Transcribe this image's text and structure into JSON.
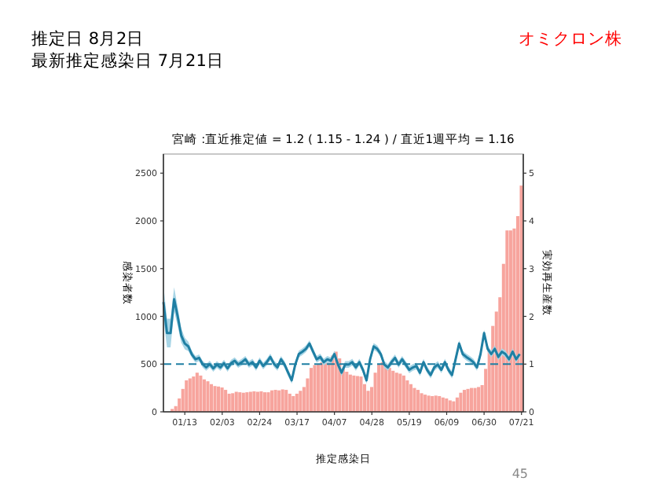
{
  "chart_data": {
    "type": "bar",
    "title": "宮崎 :直近推定値 = 1.2 ( 1.15 - 1.24 ) / 直近1週平均 = 1.16",
    "xlabel": "推定感染日",
    "ylabel": "感染者数",
    "y2label": "実効再生産数",
    "annotations": [
      "推定日  8月2日",
      "最新推定感染日  7月21日",
      "オミクロン株",
      "45"
    ],
    "x": [
      "--01-01",
      "--01-03",
      "--01-05",
      "--01-07",
      "--01-09",
      "--01-11",
      "--01-13",
      "--01-15",
      "--01-17",
      "--01-19",
      "--01-21",
      "--01-23",
      "--01-25",
      "--01-27",
      "--01-29",
      "--01-31",
      "--02-02",
      "--02-04",
      "--02-06",
      "--02-08",
      "--02-10",
      "--02-12",
      "--02-14",
      "--02-16",
      "--02-18",
      "--02-20",
      "--02-22",
      "--02-24",
      "--02-26",
      "--02-28",
      "--03-02",
      "--03-04",
      "--03-06",
      "--03-08",
      "--03-10",
      "--03-12",
      "--03-14",
      "--03-16",
      "--03-18",
      "--03-20",
      "--03-22",
      "--03-24",
      "--03-26",
      "--03-28",
      "--03-30",
      "--04-01",
      "--04-03",
      "--04-05",
      "--04-07",
      "--04-09",
      "--04-11",
      "--04-13",
      "--04-15",
      "--04-17",
      "--04-19",
      "--04-21",
      "--04-23",
      "--04-25",
      "--04-27",
      "--04-29",
      "--05-01",
      "--05-03",
      "--05-05",
      "--05-07",
      "--05-09",
      "--05-11",
      "--05-13",
      "--05-15",
      "--05-17",
      "--05-19",
      "--05-21",
      "--05-23",
      "--05-25",
      "--05-27",
      "--05-29",
      "--05-31",
      "--06-02",
      "--06-04",
      "--06-06",
      "--06-08",
      "--06-10",
      "--06-12",
      "--06-14",
      "--06-16",
      "--06-18",
      "--06-20",
      "--06-22",
      "--06-24",
      "--06-26",
      "--06-28",
      "--06-30",
      "--07-02",
      "--07-04",
      "--07-06",
      "--07-08",
      "--07-10",
      "--07-12",
      "--07-14",
      "--07-16",
      "--07-18",
      "--07-20"
    ],
    "series": [
      {
        "color": "#f7a49d",
        "values": [
          null,
          null,
          30,
          60,
          140,
          240,
          330,
          350,
          370,
          410,
          380,
          340,
          320,
          290,
          270,
          265,
          255,
          230,
          190,
          195,
          210,
          205,
          200,
          205,
          210,
          215,
          210,
          215,
          205,
          205,
          225,
          230,
          225,
          235,
          230,
          190,
          165,
          190,
          220,
          260,
          350,
          460,
          490,
          500,
          520,
          540,
          550,
          590,
          630,
          560,
          450,
          420,
          390,
          380,
          375,
          370,
          290,
          220,
          260,
          410,
          500,
          520,
          480,
          460,
          430,
          410,
          400,
          380,
          330,
          290,
          250,
          230,
          195,
          180,
          170,
          165,
          170,
          165,
          150,
          140,
          120,
          110,
          150,
          200,
          230,
          240,
          250,
          250,
          260,
          280,
          450,
          650,
          900,
          1050,
          1200,
          1550,
          1900,
          1900,
          1920,
          2050,
          2370
        ]
      },
      {
        "type": "line",
        "axis": "y2",
        "color": "#1f7fa3",
        "values": [
          2.3,
          1.65,
          1.65,
          2.36,
          2.0,
          1.6,
          1.43,
          1.37,
          1.2,
          1.1,
          1.13,
          1.0,
          0.93,
          1.0,
          0.91,
          0.99,
          0.93,
          1.02,
          0.91,
          1.02,
          1.07,
          0.99,
          1.04,
          1.1,
          0.99,
          1.04,
          0.93,
          1.07,
          0.96,
          1.04,
          1.15,
          1.01,
          0.93,
          1.1,
          0.99,
          0.82,
          0.66,
          0.99,
          1.21,
          1.26,
          1.32,
          1.43,
          1.26,
          1.1,
          1.15,
          1.04,
          1.1,
          1.07,
          1.21,
          0.99,
          0.82,
          0.99,
          0.99,
          1.04,
          0.93,
          1.04,
          0.88,
          0.66,
          1.1,
          1.37,
          1.32,
          1.21,
          0.99,
          0.93,
          1.04,
          1.13,
          0.99,
          1.1,
          0.99,
          0.88,
          0.93,
          0.96,
          0.82,
          1.04,
          0.88,
          0.77,
          0.93,
          0.99,
          0.88,
          1.04,
          0.88,
          0.77,
          1.1,
          1.43,
          1.21,
          1.15,
          1.1,
          1.04,
          0.93,
          1.21,
          1.65,
          1.32,
          1.21,
          1.32,
          1.15,
          1.26,
          1.21,
          1.1,
          1.26,
          1.1,
          1.21
        ],
        "lower": [
          1.95,
          1.35,
          1.35,
          2.11,
          1.8,
          1.45,
          1.31,
          1.27,
          1.13,
          1.03,
          1.06,
          0.93,
          0.86,
          0.93,
          0.84,
          0.92,
          0.86,
          0.95,
          0.84,
          0.95,
          1.0,
          0.92,
          0.97,
          1.03,
          0.92,
          0.97,
          0.86,
          1.0,
          0.89,
          0.97,
          1.08,
          0.94,
          0.86,
          1.03,
          0.92,
          0.75,
          0.59,
          0.92,
          1.14,
          1.19,
          1.25,
          1.36,
          1.19,
          1.03,
          1.08,
          0.97,
          1.03,
          1.0,
          1.14,
          0.92,
          0.75,
          0.92,
          0.92,
          0.97,
          0.86,
          0.97,
          0.81,
          0.59,
          1.03,
          1.3,
          1.25,
          1.14,
          0.92,
          0.86,
          0.97,
          1.06,
          0.92,
          1.03,
          0.92,
          0.81,
          0.86,
          0.89,
          0.75,
          0.97,
          0.81,
          0.7,
          0.86,
          0.92,
          0.81,
          0.97,
          0.81,
          0.7,
          1.03,
          1.36,
          1.14,
          1.08,
          1.03,
          0.97,
          0.86,
          1.14,
          1.58,
          1.25,
          1.14,
          1.25,
          1.08,
          1.19,
          1.14,
          1.03,
          1.19,
          1.03,
          1.15
        ],
        "upper": [
          2.65,
          1.95,
          1.95,
          2.61,
          2.2,
          1.75,
          1.55,
          1.47,
          1.27,
          1.17,
          1.2,
          1.07,
          1.0,
          1.07,
          0.98,
          1.06,
          1.0,
          1.09,
          0.98,
          1.09,
          1.14,
          1.06,
          1.11,
          1.17,
          1.06,
          1.11,
          1.0,
          1.14,
          1.03,
          1.11,
          1.22,
          1.08,
          1.0,
          1.17,
          1.06,
          0.89,
          0.73,
          1.06,
          1.28,
          1.33,
          1.39,
          1.5,
          1.33,
          1.17,
          1.22,
          1.11,
          1.17,
          1.14,
          1.28,
          1.06,
          0.89,
          1.06,
          1.06,
          1.11,
          1.0,
          1.11,
          0.95,
          0.73,
          1.17,
          1.44,
          1.39,
          1.28,
          1.06,
          1.0,
          1.11,
          1.2,
          1.06,
          1.17,
          1.06,
          0.95,
          1.0,
          1.03,
          0.89,
          1.11,
          0.95,
          0.84,
          1.0,
          1.06,
          0.95,
          1.11,
          0.95,
          0.84,
          1.17,
          1.5,
          1.28,
          1.22,
          1.17,
          1.11,
          1.0,
          1.28,
          1.72,
          1.39,
          1.28,
          1.39,
          1.22,
          1.33,
          1.28,
          1.17,
          1.33,
          1.17,
          1.24
        ]
      }
    ],
    "xlim": [
      "--01-01",
      "--07-22"
    ],
    "xticks": [
      {
        "value": "--01-13",
        "label": "01/13"
      },
      {
        "value": "--02-03",
        "label": "02/03"
      },
      {
        "value": "--02-24",
        "label": "02/24"
      },
      {
        "value": "--03-17",
        "label": "03/17"
      },
      {
        "value": "--04-07",
        "label": "04/07"
      },
      {
        "value": "--04-28",
        "label": "04/28"
      },
      {
        "value": "--05-19",
        "label": "05/19"
      },
      {
        "value": "--06-09",
        "label": "06/09"
      },
      {
        "value": "--06-30",
        "label": "06/30"
      },
      {
        "value": "--07-21",
        "label": "07/21"
      }
    ],
    "ylim": [
      0,
      2700
    ],
    "yticks": [
      0,
      500,
      1000,
      1500,
      2000,
      2500
    ],
    "y2lim": [
      0,
      5.4
    ],
    "y2ticks": [
      0,
      1,
      2,
      3,
      4,
      5
    ],
    "ref_lines": [
      {
        "axis": "y2",
        "value": 1,
        "color": "#1f7fa3",
        "line_style": "dashed"
      }
    ]
  }
}
